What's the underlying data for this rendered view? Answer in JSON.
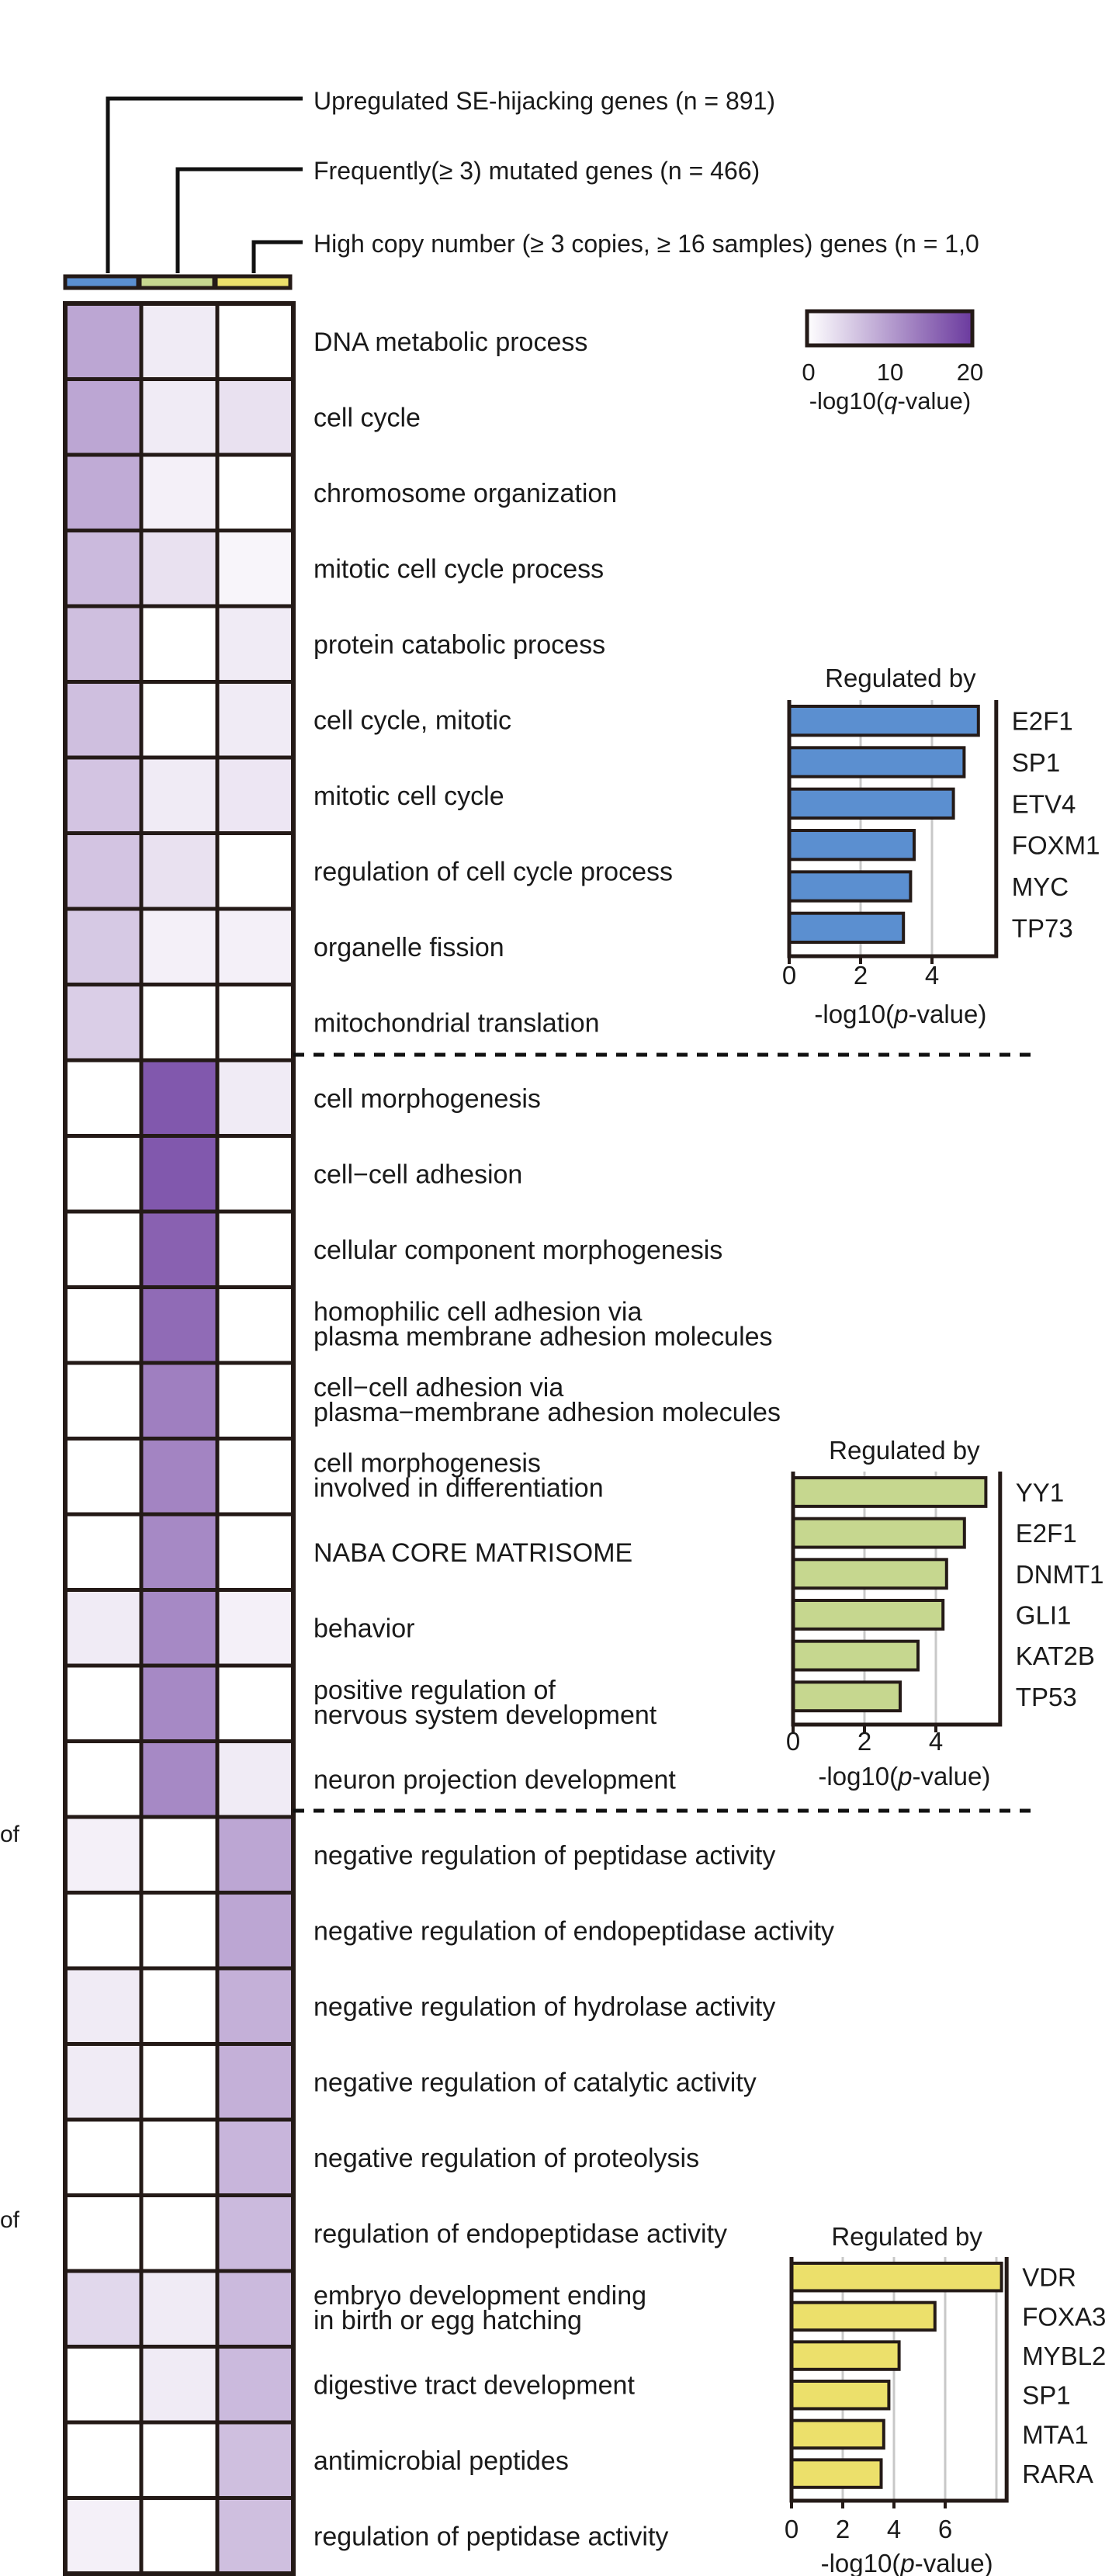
{
  "headers": [
    "Upregulated SE-hijacking genes (n = 891)",
    "Frequently(≥ 3) mutated genes (n = 466)",
    "High copy number (≥ 3 copies, ≥ 16 samples) genes (n = 1,0"
  ],
  "colors": {
    "heat_low": "#ffffff",
    "heat_high": "#6b3a9e",
    "column_bars": [
      "#5b8fd0",
      "#c6d78f",
      "#ece06b"
    ],
    "tf_bars": [
      "#5b8fd0",
      "#c6d78f",
      "#ece06b"
    ],
    "grid": "#241a17"
  },
  "left_cutoff_labels": [
    "of",
    "of"
  ],
  "chart_data": [
    {
      "type": "heatmap",
      "title": "",
      "columns": [
        "Upregulated SE-hijacking genes",
        "Frequently(≥ 3) mutated genes",
        "High copy number genes"
      ],
      "rows": [
        "DNA metabolic process",
        "cell cycle",
        "chromosome organization",
        "mitotic cell cycle process",
        "protein catabolic process",
        "cell cycle, mitotic",
        "mitotic cell cycle",
        "regulation of cell cycle process",
        "organelle fission",
        "mitochondrial translation",
        "cell morphogenesis",
        "cell−cell adhesion",
        "cellular component morphogenesis",
        "homophilic cell adhesion via\nplasma membrane adhesion molecules",
        "cell−cell adhesion via\nplasma−membrane adhesion molecules",
        "cell morphogenesis\ninvolved in differentiation",
        "NABA CORE MATRISOME",
        "behavior",
        "positive regulation of\nnervous system development",
        "neuron projection development",
        "negative regulation of peptidase activity",
        "negative regulation of endopeptidase activity",
        "negative regulation of hydrolase activity",
        "negative regulation of catalytic activity",
        "negative regulation of proteolysis",
        "regulation of endopeptidase activity",
        "embryo development ending\nin birth or egg hatching",
        "digestive tract development",
        "antimicrobial peptides",
        "regulation of peptidase activity"
      ],
      "values": [
        [
          9,
          2,
          0
        ],
        [
          9,
          2,
          3
        ],
        [
          8.5,
          1.5,
          0
        ],
        [
          7,
          3,
          1
        ],
        [
          6.5,
          0,
          2
        ],
        [
          6.5,
          0,
          2
        ],
        [
          6,
          2,
          2.5
        ],
        [
          6,
          3,
          0
        ],
        [
          5.5,
          1.5,
          1.5
        ],
        [
          5,
          0,
          0
        ],
        [
          0,
          17,
          2
        ],
        [
          0,
          17,
          0
        ],
        [
          0,
          16,
          0
        ],
        [
          0,
          15,
          0
        ],
        [
          0,
          13,
          0
        ],
        [
          0,
          12.5,
          0
        ],
        [
          0,
          12,
          0
        ],
        [
          2,
          12,
          1.5
        ],
        [
          0,
          12,
          0
        ],
        [
          0,
          12,
          2
        ],
        [
          1.5,
          0,
          9
        ],
        [
          0,
          0,
          9
        ],
        [
          2,
          0,
          8
        ],
        [
          2,
          0,
          8
        ],
        [
          0,
          0,
          7.5
        ],
        [
          0,
          0,
          7
        ],
        [
          4,
          2,
          7
        ],
        [
          0,
          2,
          7
        ],
        [
          0,
          0,
          6.5
        ],
        [
          1.5,
          0,
          6.5
        ]
      ],
      "colorbar": {
        "min": 0,
        "max": 20,
        "ticks": [
          "0",
          "10",
          "20"
        ],
        "label_prefix": "-log10(",
        "label_italic": "q",
        "label_suffix": "-value)"
      },
      "group_separators_after_rows": [
        10,
        20
      ]
    },
    {
      "type": "bar",
      "orientation": "horizontal",
      "title": "Regulated by",
      "categories": [
        "E2F1",
        "SP1",
        "ETV4",
        "FOXM1",
        "MYC",
        "TP73"
      ],
      "values": [
        5.3,
        4.9,
        4.6,
        3.5,
        3.4,
        3.2
      ],
      "xlim": [
        0,
        5.8
      ],
      "xticks": [
        "0",
        "2",
        "4"
      ],
      "xlabel_prefix": "-log10(",
      "xlabel_italic": "p",
      "xlabel_suffix": "-value)",
      "grid": true
    },
    {
      "type": "bar",
      "orientation": "horizontal",
      "title": "Regulated by",
      "categories": [
        "YY1",
        "E2F1",
        "DNMT1",
        "GLI1",
        "KAT2B",
        "TP53"
      ],
      "values": [
        5.4,
        4.8,
        4.3,
        4.2,
        3.5,
        3.0
      ],
      "xlim": [
        0,
        5.8
      ],
      "xticks": [
        "0",
        "2",
        "4"
      ],
      "xlabel_prefix": "-log10(",
      "xlabel_italic": "p",
      "xlabel_suffix": "-value)",
      "grid": true
    },
    {
      "type": "bar",
      "orientation": "horizontal",
      "title": "Regulated by",
      "categories": [
        "VDR",
        "FOXA3",
        "MYBL2",
        "SP1",
        "MTA1",
        "RARA"
      ],
      "values": [
        8.2,
        5.6,
        4.2,
        3.8,
        3.6,
        3.5
      ],
      "xlim": [
        0,
        8.4
      ],
      "xticks": [
        "0",
        "2",
        "4",
        "6"
      ],
      "xlabel_prefix": "-log10(",
      "xlabel_italic": "p",
      "xlabel_suffix": "-value)",
      "grid": true
    }
  ]
}
